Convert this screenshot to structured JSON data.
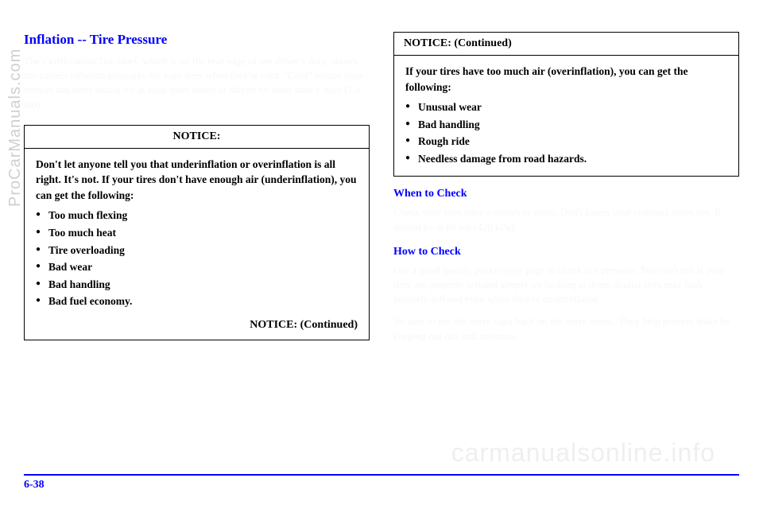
{
  "left": {
    "heading": "Inflation -- Tire Pressure",
    "para1": "The Certification/Tire label, which is on the rear edge of the driver's door, shows the correct inflation pressures for your tires when they're cold. \"Cold\" means your vehicle has been sitting for at least three hours or driven no more than 1 mile (1.6 km).",
    "noticeHeader": "NOTICE:",
    "noticeIntro": "Don't let anyone tell you that underinflation or overinflation is all right. It's not. If your tires don't have enough air (underinflation), you can get the following:",
    "noticeItems": [
      "Too much flexing",
      "Too much heat",
      "Tire overloading",
      "Bad wear",
      "Bad handling",
      "Bad fuel economy."
    ],
    "noticeFooter": "NOTICE: (Continued)"
  },
  "right": {
    "noticeHeader": "NOTICE: (Continued)",
    "noticeIntro": "If your tires have too much air (overinflation), you can get the following:",
    "noticeItems": [
      "Unusual wear",
      "Bad handling",
      "Rough ride",
      "Needless damage from road hazards."
    ],
    "sub1": "When to Check",
    "sub1Text": "Check your tires once a month or more. Don't forget your compact spare tire. It should be at 60 psi (420 kPa).",
    "sub2": "How to Check",
    "sub2Text1": "Use a good quality pocket-type gage to check tire pressure. You can't tell if your tires are properly inflated simply by looking at them. Radial tires may look properly inflated even when they're underinflated.",
    "sub2Text2": "Be sure to put the valve caps back on the valve stems. They help prevent leaks by keeping out dirt and moisture."
  },
  "watermarkSide": "ProCarManuals.com",
  "watermarkMain": "carmanualsonline.info",
  "pageNum": "6-38"
}
